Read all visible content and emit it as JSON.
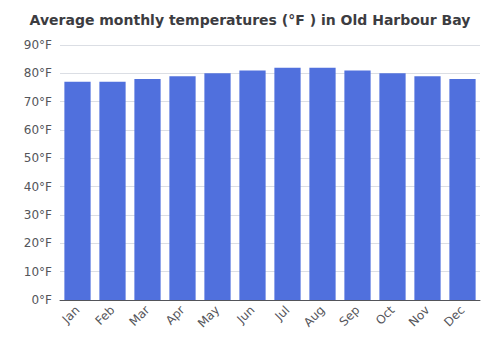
{
  "chart_data": {
    "type": "bar",
    "title": "Average monthly temperatures (°F ) in Old Harbour Bay",
    "categories": [
      "Jan",
      "Feb",
      "Mar",
      "Apr",
      "May",
      "Jun",
      "Jul",
      "Aug",
      "Sep",
      "Oct",
      "Nov",
      "Dec"
    ],
    "values": [
      77,
      77,
      78,
      79,
      80,
      81,
      82,
      82,
      81,
      80,
      79,
      78
    ],
    "ylim": [
      0,
      90
    ],
    "yticks": [
      {
        "value": 0,
        "label": "0°F"
      },
      {
        "value": 10,
        "label": "10°F"
      },
      {
        "value": 20,
        "label": "20°F"
      },
      {
        "value": 30,
        "label": "30°F"
      },
      {
        "value": 40,
        "label": "40°F"
      },
      {
        "value": 50,
        "label": "50°F"
      },
      {
        "value": 60,
        "label": "60°F"
      },
      {
        "value": 70,
        "label": "70°F"
      },
      {
        "value": 80,
        "label": "80°F"
      },
      {
        "value": 90,
        "label": "90°F"
      }
    ],
    "grid": true
  }
}
